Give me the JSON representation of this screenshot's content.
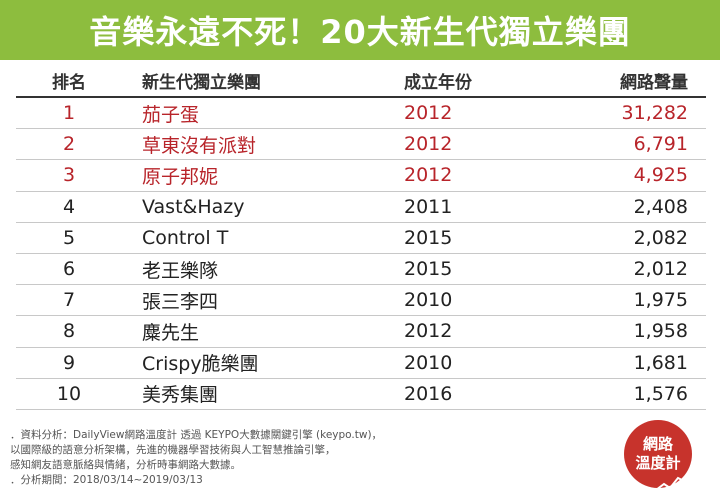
{
  "title": "音樂永遠不死！20大新生代獨立樂團",
  "headers": {
    "rank": "排名",
    "name": "新生代獨立樂團",
    "year": "成立年份",
    "volume": "網路聲量"
  },
  "chart_data": {
    "type": "table",
    "columns": [
      "排名",
      "新生代獨立樂團",
      "成立年份",
      "網路聲量"
    ],
    "rows": [
      {
        "rank": "1",
        "name": "茄子蛋",
        "year": "2012",
        "volume": "31,282",
        "highlight": true
      },
      {
        "rank": "2",
        "name": "草東沒有派對",
        "year": "2012",
        "volume": "6,791",
        "highlight": true
      },
      {
        "rank": "3",
        "name": "原子邦妮",
        "year": "2012",
        "volume": "4,925",
        "highlight": true
      },
      {
        "rank": "4",
        "name": "Vast&Hazy",
        "year": "2011",
        "volume": "2,408",
        "highlight": false
      },
      {
        "rank": "5",
        "name": "Control T",
        "year": "2015",
        "volume": "2,082",
        "highlight": false
      },
      {
        "rank": "6",
        "name": "老王樂隊",
        "year": "2015",
        "volume": "2,012",
        "highlight": false
      },
      {
        "rank": "7",
        "name": "張三李四",
        "year": "2010",
        "volume": "1,975",
        "highlight": false
      },
      {
        "rank": "8",
        "name": "麋先生",
        "year": "2012",
        "volume": "1,958",
        "highlight": false
      },
      {
        "rank": "9",
        "name": "Crispy脆樂團",
        "year": "2010",
        "volume": "1,681",
        "highlight": false
      },
      {
        "rank": "10",
        "name": "美秀集團",
        "year": "2016",
        "volume": "1,576",
        "highlight": false
      }
    ]
  },
  "footer": {
    "line1": "．資料分析：DailyView網路溫度計 透過 KEYPO大數據關鍵引擎 (keypo.tw)，",
    "line2": "以國際級的語意分析架構，先進的機器學習技術與人工智慧推論引擎，",
    "line3": "感知網友語意脈絡與情緒，分析時事網路大數據。",
    "line4": "．分析期間：2018/03/14~2019/03/13"
  },
  "logo": {
    "line1": "網路",
    "line2": "溫度計"
  },
  "colors": {
    "banner": "#8dbd3e",
    "highlight": "#b8242a",
    "logo": "#c7332c"
  }
}
